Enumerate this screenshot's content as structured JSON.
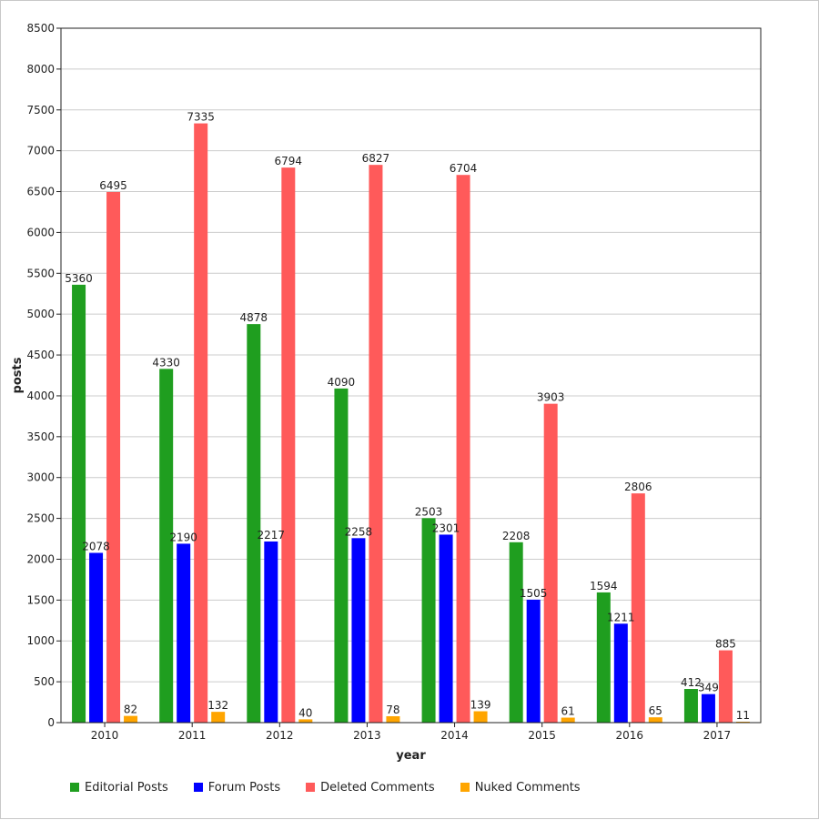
{
  "chart_data": {
    "type": "bar",
    "categories": [
      "2010",
      "2011",
      "2012",
      "2013",
      "2014",
      "2015",
      "2016",
      "2017"
    ],
    "series": [
      {
        "name": "Editorial Posts",
        "color": "#1f9e1f",
        "values": [
          5360,
          4330,
          4878,
          4090,
          2503,
          2208,
          1594,
          412
        ]
      },
      {
        "name": "Forum Posts",
        "color": "#0000ff",
        "values": [
          2078,
          2190,
          2217,
          2258,
          2301,
          1505,
          1211,
          349
        ]
      },
      {
        "name": "Deleted Comments",
        "color": "#ff5a5a",
        "values": [
          6495,
          7335,
          6794,
          6827,
          6704,
          3903,
          2806,
          885
        ]
      },
      {
        "name": "Nuked Comments",
        "color": "#ffa500",
        "values": [
          82,
          132,
          40,
          78,
          139,
          61,
          65,
          11
        ]
      }
    ],
    "xlabel": "year",
    "ylabel": "posts",
    "ylim": [
      0,
      8500
    ],
    "ytick_step": 500,
    "grid": true,
    "legend_position": "bottom-left"
  }
}
